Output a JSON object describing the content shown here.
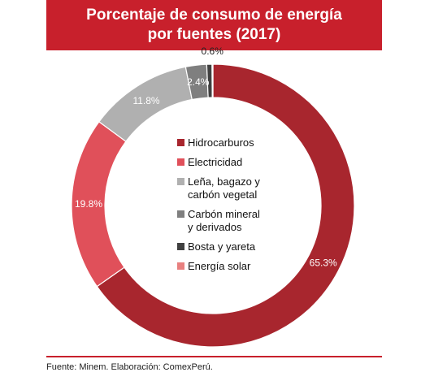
{
  "title_line1": "Porcentaje de consumo de energía",
  "title_line2": "por fuentes (2017)",
  "source": "Fuente: Minem. Elaboración: ComexPerú.",
  "colors": {
    "brand": "#c8202c"
  },
  "chart_data": {
    "type": "pie",
    "subtype": "donut",
    "title": "Porcentaje de consumo de energía por fuentes (2017)",
    "legend_position": "center",
    "slices": [
      {
        "name": "Hidrocarburos",
        "value": 65.3,
        "label": "65.3%",
        "color": "#a8262e"
      },
      {
        "name": "Electricidad",
        "value": 19.8,
        "label": "19.8%",
        "color": "#e0505a"
      },
      {
        "name": "Leña, bagazo y carbón vegetal",
        "legend_lines": [
          "Leña, bagazo y",
          "carbón vegetal"
        ],
        "value": 11.8,
        "label": "11.8%",
        "color": "#b0b0b0"
      },
      {
        "name": "Carbón mineral y derivados",
        "legend_lines": [
          "Carbón mineral",
          "y derivados"
        ],
        "value": 2.4,
        "label": "2.4%",
        "color": "#7f7f7f"
      },
      {
        "name": "Bosta y yareta",
        "value": 0.6,
        "label": "0.6%",
        "color": "#404040"
      },
      {
        "name": "Energía solar",
        "value": 0.1,
        "label": "",
        "color": "#e8807f"
      }
    ]
  }
}
